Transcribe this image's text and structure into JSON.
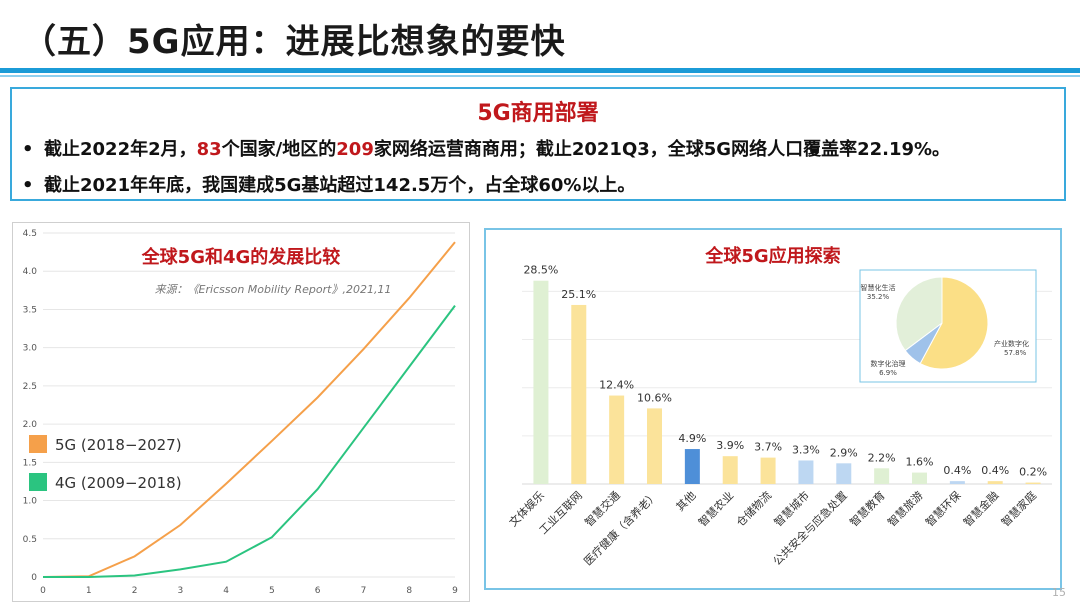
{
  "slide": {
    "title": "（五）5G应用：进展比想象的要快",
    "page_number": "15"
  },
  "deploy": {
    "title": "5G商用部署",
    "bullet_symbol": "•",
    "b1_part1": "截止2022年2月，",
    "b1_num1": "83",
    "b1_part2": "个国家/地区的",
    "b1_num2": "209",
    "b1_part3": "家网络运营商商用；截止2021Q3，全球5G网络人口覆盖率22.19%。",
    "b2": "截止2021年年底，我国建成5G基站超过142.5万个，占全球60%以上。"
  },
  "chart_data": [
    {
      "type": "line",
      "title": "全球5G和4G的发展比较",
      "subtitle": "来源：《Ericsson Mobility Report》,2021,11",
      "x": [
        0,
        1,
        2,
        3,
        4,
        5,
        6,
        7,
        8,
        9
      ],
      "ylim": [
        0,
        4.5
      ],
      "yticks": [
        "0",
        "0.5",
        "1.0",
        "1.5",
        "2.0",
        "2.5",
        "3.0",
        "3.5",
        "4.0",
        "4.5"
      ],
      "xticks": [
        "0",
        "1",
        "2",
        "3",
        "4",
        "5",
        "6",
        "7",
        "8",
        "9"
      ],
      "series": [
        {
          "name": "5G (2018−2027)",
          "color": "#f5a04a",
          "values": [
            0,
            0.01,
            0.27,
            0.68,
            1.22,
            1.78,
            2.35,
            2.98,
            3.65,
            4.38
          ]
        },
        {
          "name": "4G (2009−2018)",
          "color": "#2bc480",
          "values": [
            0,
            0,
            0.02,
            0.1,
            0.2,
            0.52,
            1.15,
            1.95,
            2.75,
            3.55
          ]
        }
      ]
    },
    {
      "type": "bar",
      "title": "全球5G应用探索",
      "categories": [
        "文体娱乐",
        "工业互联网",
        "智慧交通",
        "医疗健康（含养老）",
        "其他",
        "智慧农业",
        "仓储物流",
        "智慧城市",
        "公共安全与应急处置",
        "智慧教育",
        "智慧旅游",
        "智慧环保",
        "智慧金融",
        "智慧家庭"
      ],
      "values": [
        28.5,
        25.1,
        12.4,
        10.6,
        4.9,
        3.9,
        3.7,
        3.3,
        2.9,
        2.2,
        1.6,
        0.4,
        0.4,
        0.2
      ],
      "value_labels": [
        "28.5%",
        "25.1%",
        "12.4%",
        "10.6%",
        "4.9%",
        "3.9%",
        "3.7%",
        "3.3%",
        "2.9%",
        "2.2%",
        "1.6%",
        "0.4%",
        "0.4%",
        "0.2%"
      ],
      "colors": [
        "#dff0d3",
        "#fbe39a",
        "#fbe39a",
        "#fbe39a",
        "#4e8fd8",
        "#fbe39a",
        "#fbe39a",
        "#bdd7f2",
        "#bdd7f2",
        "#dff0d3",
        "#dff0d3",
        "#bdd7f2",
        "#fbe39a",
        "#fbe39a"
      ],
      "ylim": [
        0,
        30
      ]
    },
    {
      "type": "pie",
      "slices": [
        {
          "label": "产业数字化",
          "value": 57.8,
          "value_label": "57.8%",
          "color": "#fbdf86"
        },
        {
          "label": "数字化治理",
          "value": 6.9,
          "value_label": "6.9%",
          "color": "#9fc2ea"
        },
        {
          "label": "智慧化生活",
          "value": 35.2,
          "value_label": "35.2%",
          "color": "#e2efd9"
        }
      ]
    }
  ]
}
